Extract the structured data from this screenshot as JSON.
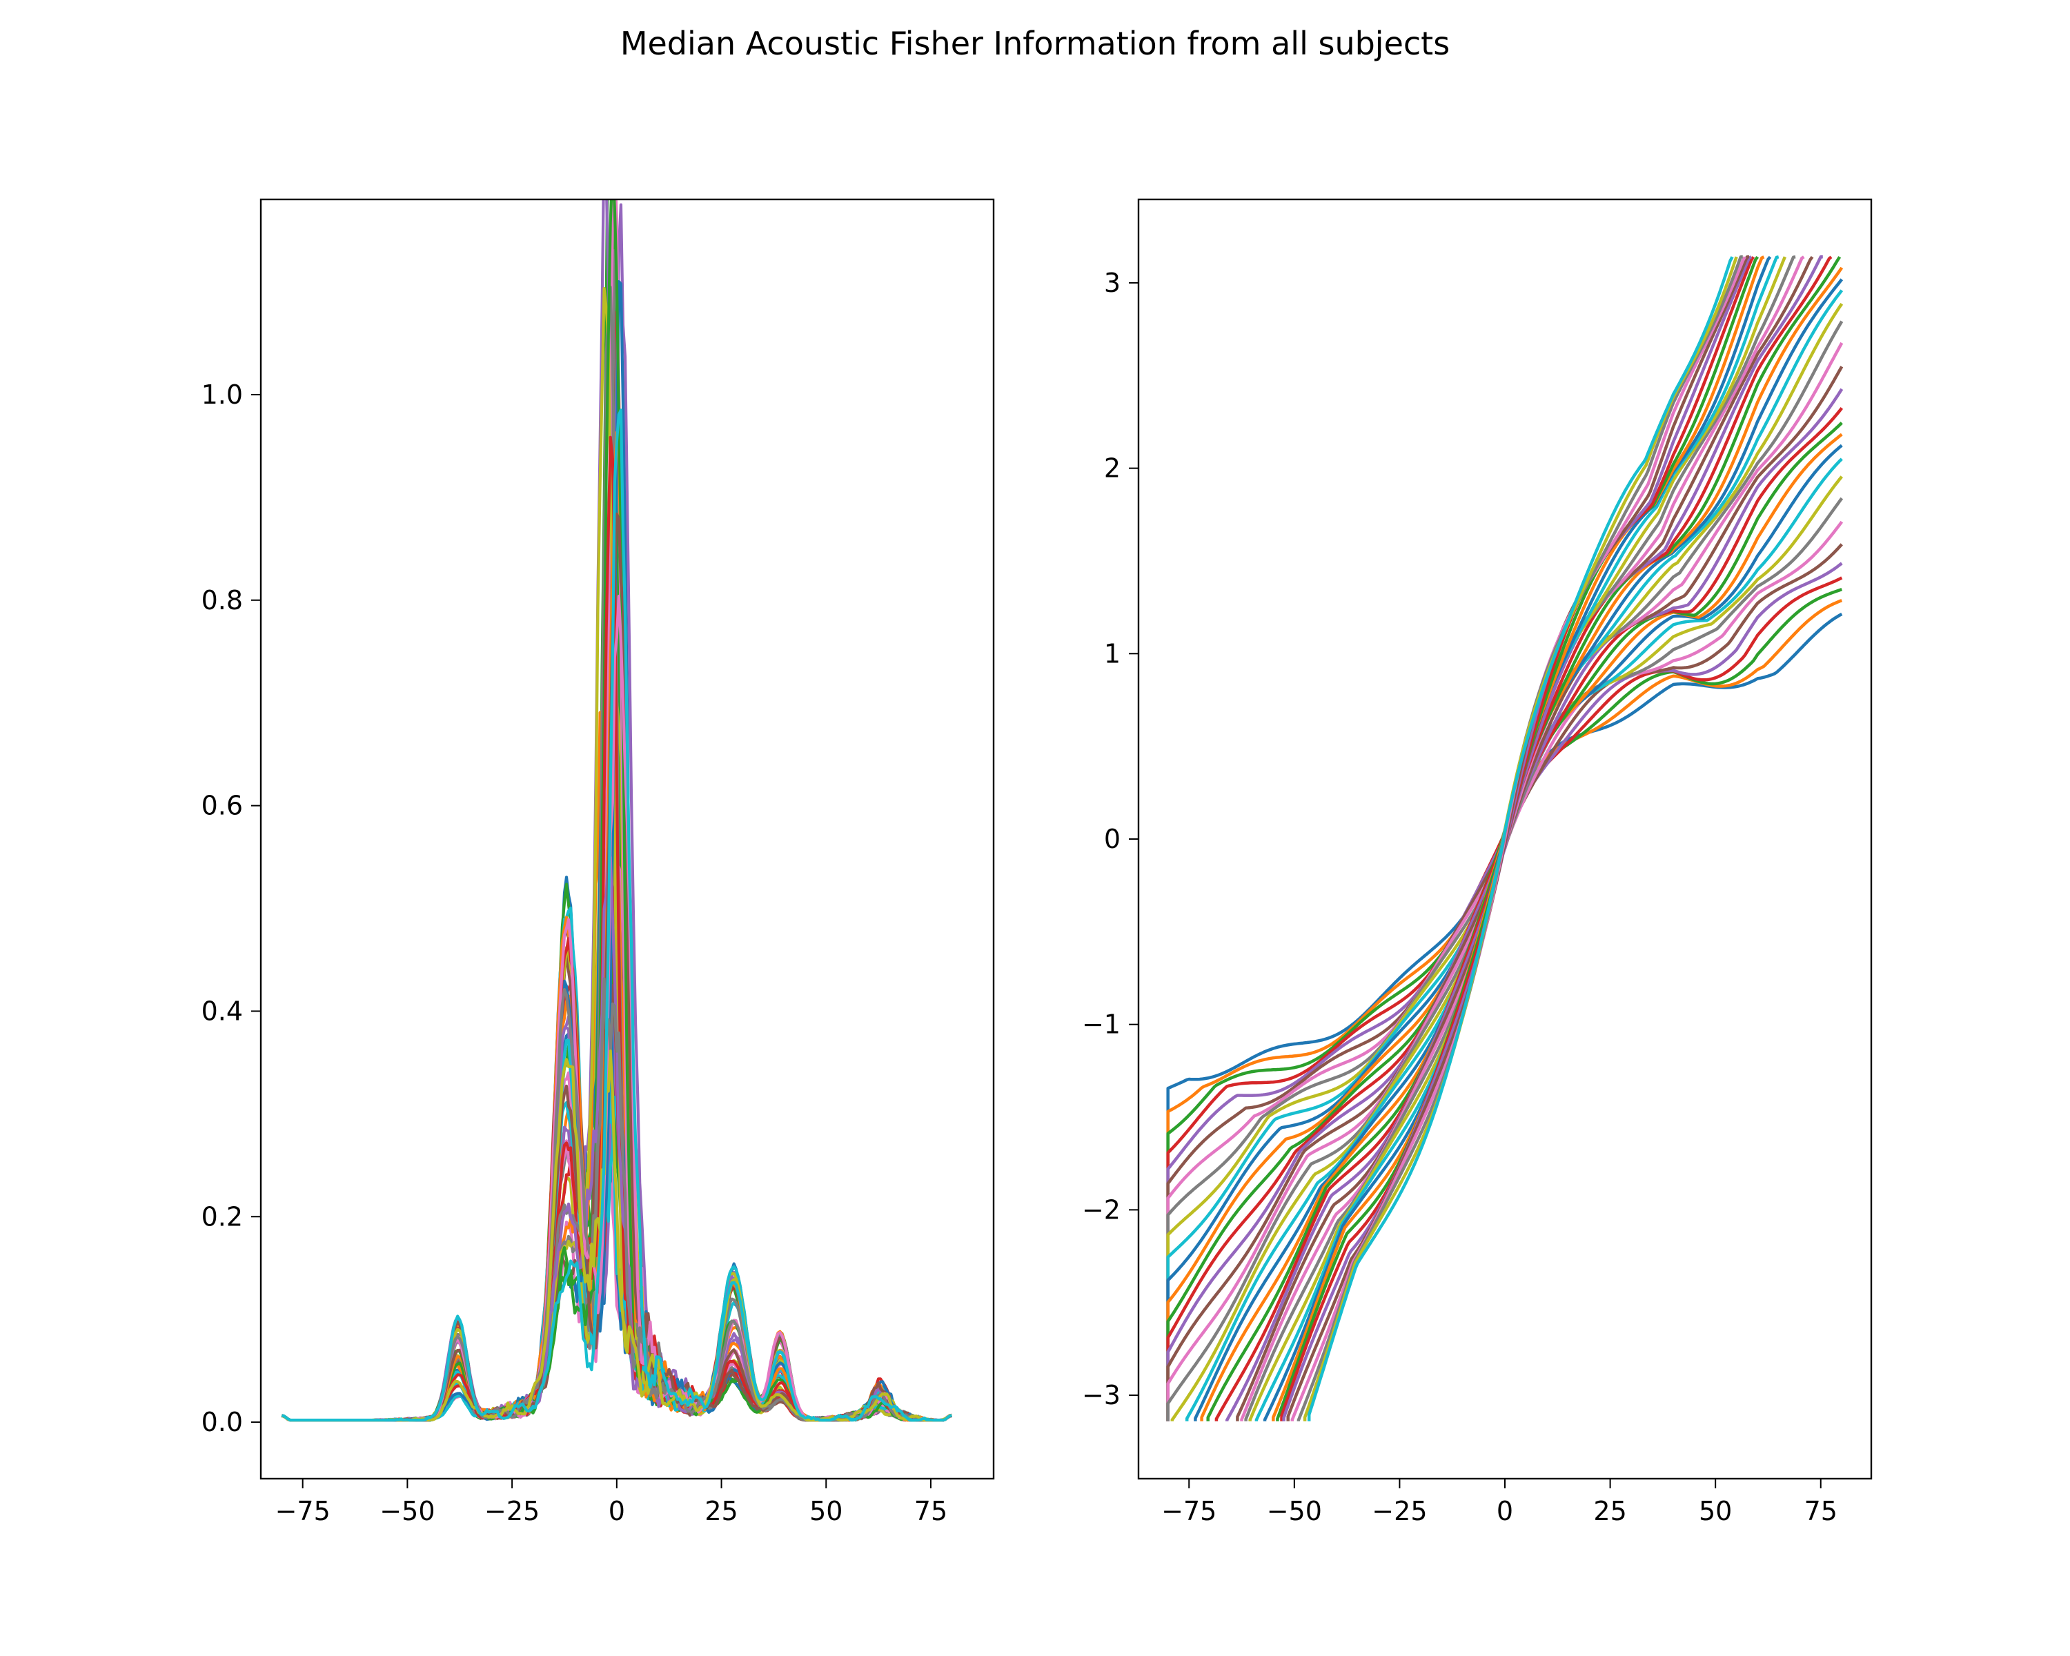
{
  "figure": {
    "title": "Median Acoustic Fisher Information from all subjects"
  },
  "chart_data": [
    {
      "type": "line",
      "title": "",
      "xlabel": "",
      "ylabel": "",
      "xlim": [
        -85,
        90
      ],
      "ylim": [
        -0.055,
        1.19
      ],
      "xticks": [
        -75,
        -50,
        -25,
        0,
        25,
        50,
        75
      ],
      "yticks": [
        0.0,
        0.2,
        0.4,
        0.6,
        0.8,
        1.0
      ],
      "xtick_labels": [
        "−75",
        "−50",
        "−25",
        "0",
        "25",
        "50",
        "75"
      ],
      "ytick_labels": [
        "0.0",
        "0.2",
        "0.4",
        "0.6",
        "0.8",
        "1.0"
      ],
      "grid": false,
      "legend": "none",
      "series_count": 40,
      "x_range": [
        -80,
        80
      ],
      "peak_x": -1,
      "peak_range": [
        0.14,
        1.14
      ],
      "secondary_peaks": [
        {
          "x": -12,
          "max": 0.47
        },
        {
          "x": -38,
          "max": 0.1
        },
        {
          "x": 28,
          "max": 0.15
        },
        {
          "x": 39,
          "max": 0.085
        },
        {
          "x": 63,
          "max": 0.03
        }
      ]
    },
    {
      "type": "line",
      "title": "",
      "xlabel": "",
      "ylabel": "",
      "xlim": [
        -87,
        87
      ],
      "ylim": [
        -3.45,
        3.45
      ],
      "xticks": [
        -75,
        -50,
        -25,
        0,
        25,
        50,
        75
      ],
      "yticks": [
        -3,
        -2,
        -1,
        0,
        1,
        2,
        3
      ],
      "xtick_labels": [
        "−75",
        "−50",
        "−25",
        "0",
        "25",
        "50",
        "75"
      ],
      "ytick_labels": [
        "−3",
        "−2",
        "−1",
        "0",
        "1",
        "2",
        "3"
      ],
      "grid": false,
      "legend": "none",
      "series_count": 40,
      "x_range": [
        -80,
        80
      ],
      "y_clip": [
        -3.14,
        3.14
      ],
      "right_end_values": [
        1.11,
        3.04
      ],
      "left_end_values": [
        -1.29,
        -3.14
      ]
    }
  ],
  "colors": [
    "#1f77b4",
    "#ff7f0e",
    "#2ca02c",
    "#d62728",
    "#9467bd",
    "#8c564b",
    "#e377c2",
    "#7f7f7f",
    "#bcbd22",
    "#17becf"
  ]
}
